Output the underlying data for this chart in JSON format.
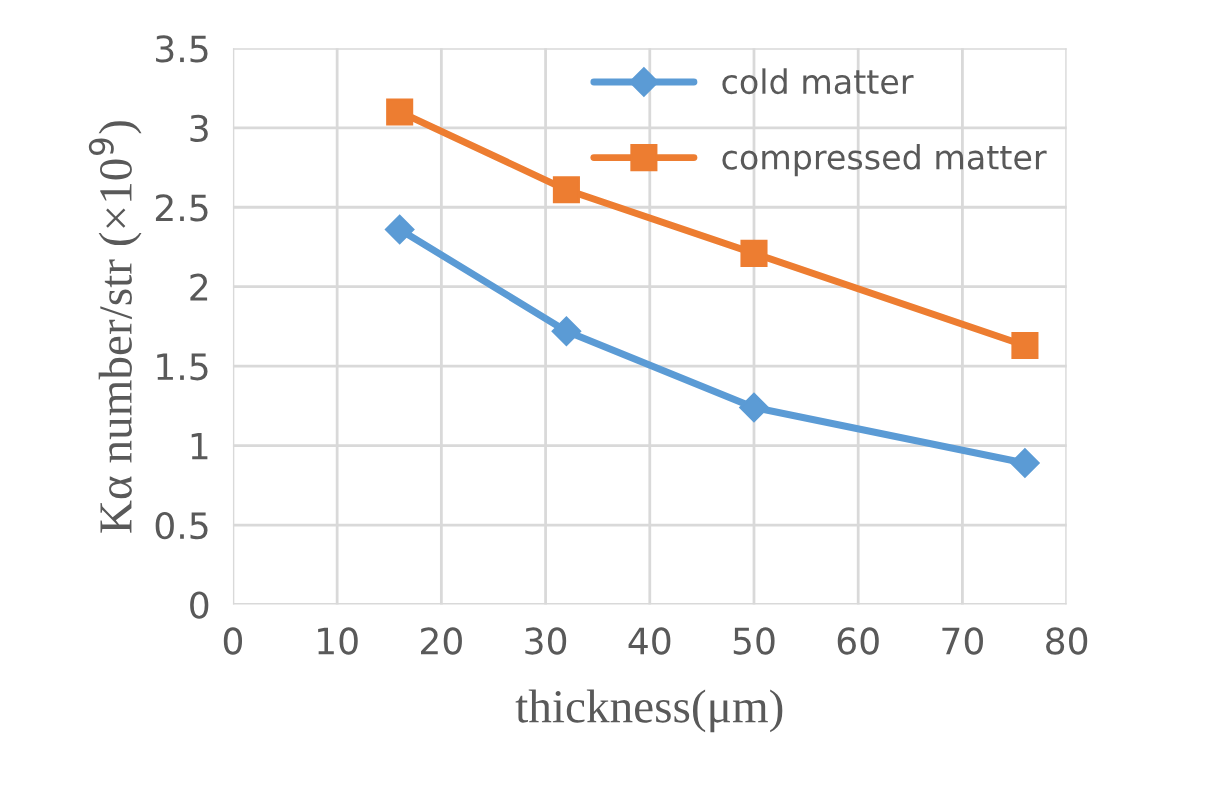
{
  "chart_data": {
    "type": "line",
    "xlabel": "thickness(μm)",
    "ylabel": "Kα number/str (×10$^{9}$)",
    "series": [
      {
        "name": "cold matter",
        "color": "#5b9bd5",
        "marker": "diamond",
        "x": [
          16,
          32,
          50,
          76
        ],
        "values": [
          2.36,
          1.72,
          1.24,
          0.89
        ]
      },
      {
        "name": "compressed matter",
        "color": "#ed7d31",
        "marker": "square",
        "x": [
          16,
          32,
          50,
          76
        ],
        "values": [
          3.1,
          2.61,
          2.21,
          1.63
        ]
      }
    ],
    "xlim": [
      0,
      80
    ],
    "xticks": [
      0,
      10,
      20,
      30,
      40,
      50,
      60,
      70,
      80
    ],
    "ylim": [
      0,
      3.5
    ],
    "yticks": [
      0,
      0.5,
      1,
      1.5,
      2,
      2.5,
      3,
      3.5
    ],
    "grid": true,
    "legend": "top right"
  }
}
